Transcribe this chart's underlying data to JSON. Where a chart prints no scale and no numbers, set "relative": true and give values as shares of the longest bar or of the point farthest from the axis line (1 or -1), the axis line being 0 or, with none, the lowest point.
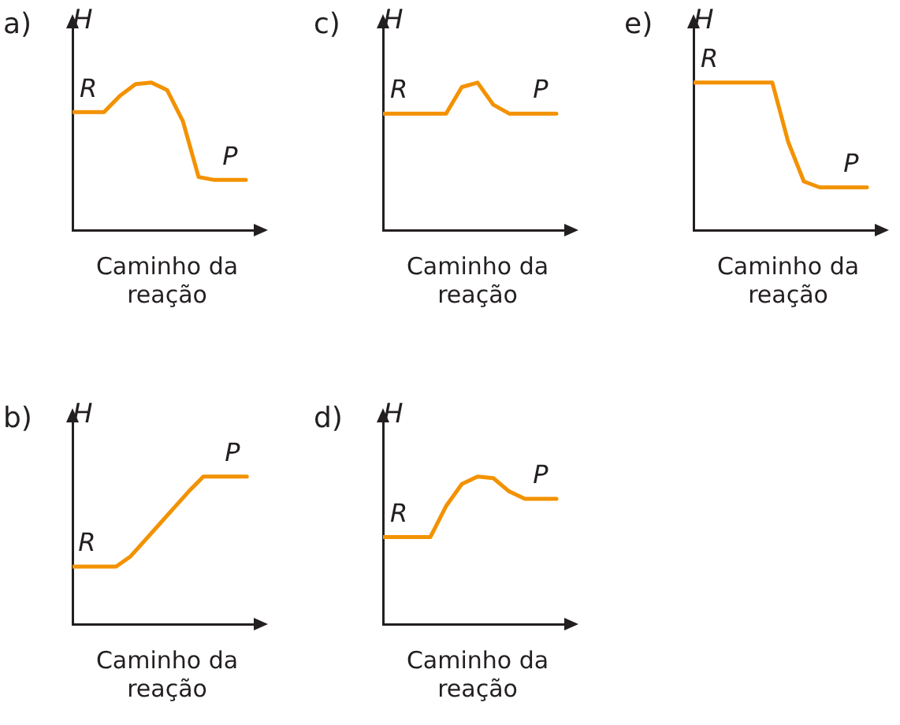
{
  "chart_data": [
    {
      "type": "line",
      "title": "a)",
      "ylabel": "H",
      "xlabel": "Caminho da reação",
      "relative": true,
      "color": "#f39200",
      "categories": [
        null,
        null,
        null,
        null,
        null,
        null,
        null,
        null,
        null,
        null,
        null,
        null
      ],
      "values": [
        0.8,
        0.8,
        0.8,
        0.91,
        0.99,
        1,
        0.95,
        0.74,
        0.36,
        0.34,
        0.34,
        0.34
      ],
      "annotations": [
        "R",
        "P"
      ]
    },
    {
      "type": "line",
      "title": "c)",
      "ylabel": "H",
      "xlabel": "Caminho da reação",
      "relative": true,
      "color": "#f39200",
      "categories": [
        null,
        null,
        null,
        null,
        null,
        null,
        null,
        null,
        null,
        null,
        null,
        null
      ],
      "values": [
        0.79,
        0.79,
        0.79,
        0.79,
        0.79,
        0.97,
        1,
        0.85,
        0.79,
        0.79,
        0.79,
        0.79
      ],
      "annotations": [
        "R",
        "P"
      ]
    },
    {
      "type": "line",
      "title": "e)",
      "ylabel": "H",
      "xlabel": "Caminho da reação",
      "relative": true,
      "color": "#f39200",
      "categories": [
        null,
        null,
        null,
        null,
        null,
        null,
        null,
        null,
        null,
        null,
        null,
        null
      ],
      "values": [
        1,
        1,
        1,
        1,
        1,
        1,
        0.6,
        0.33,
        0.29,
        0.29,
        0.29,
        0.29
      ],
      "annotations": [
        "R",
        "P"
      ]
    },
    {
      "type": "line",
      "title": "b)",
      "ylabel": "H",
      "xlabel": "Caminho da reação",
      "relative": true,
      "color": "#f39200",
      "categories": [
        null,
        null,
        null,
        null,
        null,
        null,
        null,
        null,
        null,
        null,
        null,
        null,
        null
      ],
      "values": [
        0.39,
        0.39,
        0.39,
        0.39,
        0.46,
        0.57,
        0.68,
        0.79,
        0.9,
        1,
        1,
        1,
        1
      ],
      "annotations": [
        "R",
        "P"
      ]
    },
    {
      "type": "line",
      "title": "d)",
      "ylabel": "H",
      "xlabel": "Caminho da reação",
      "relative": true,
      "color": "#f39200",
      "categories": [
        null,
        null,
        null,
        null,
        null,
        null,
        null,
        null,
        null,
        null,
        null,
        null
      ],
      "values": [
        0.59,
        0.59,
        0.59,
        0.59,
        0.8,
        0.95,
        1,
        0.99,
        0.9,
        0.85,
        0.85,
        0.85
      ],
      "annotations": [
        "R",
        "P"
      ]
    }
  ]
}
